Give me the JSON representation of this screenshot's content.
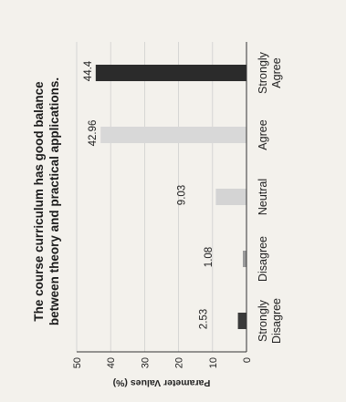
{
  "chart_data": {
    "type": "bar",
    "title": "The course curriculum has good balance between theory and practical applications.",
    "title_lines": [
      "The course curriculum has good balance",
      "between theory and practical applications."
    ],
    "ylabel": "Parameter Values (%)",
    "xlabel": "",
    "ylim": [
      0,
      50
    ],
    "yticks": [
      0,
      10,
      20,
      30,
      40,
      50
    ],
    "categories": [
      "Strongly Disagree",
      "Disagree",
      "Neutral",
      "Agree",
      "Strongly Agree"
    ],
    "category_lines": [
      [
        "Strongly",
        "Disagree"
      ],
      [
        "Disagree"
      ],
      [
        "Neutral"
      ],
      [
        "Agree"
      ],
      [
        "Strongly",
        "Agree"
      ]
    ],
    "values": [
      2.53,
      1.08,
      9.03,
      42.96,
      44.4
    ],
    "value_labels": [
      "2.53",
      "1.08",
      "9.03",
      "42.96",
      "44.4"
    ],
    "bar_colors": [
      "#3a3a3a",
      "#9a9a9a",
      "#d4d4d4",
      "#d8d8d8",
      "#2b2b2b"
    ],
    "grid": "horizontal"
  }
}
